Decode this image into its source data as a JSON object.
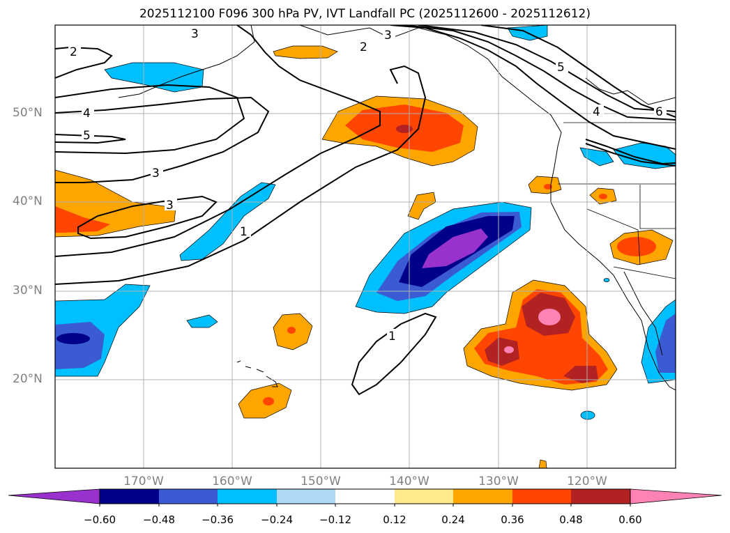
{
  "title": "2025112100 F096 300 hPa PV, IVT Landfall PC (2025112600 - 2025112612)",
  "map": {
    "lat_labels": [
      "50°N",
      "40°N",
      "30°N",
      "20°N"
    ],
    "lon_labels": [
      "170°W",
      "160°W",
      "150°W",
      "140°W",
      "130°W",
      "120°W"
    ],
    "contour_labels": [
      "2",
      "3",
      "3",
      "2",
      "4",
      "5",
      "3",
      "3",
      "1",
      "1",
      "5",
      "4",
      "6"
    ]
  },
  "colorbar": {
    "colors": [
      "#9932cc",
      "#00008b",
      "#3a5bd1",
      "#00bfff",
      "#add8f6",
      "#ffffff",
      "#ffe98a",
      "#ffa500",
      "#ff4500",
      "#b22222",
      "#ff82b4"
    ],
    "tick_labels": [
      "−0.60",
      "−0.48",
      "−0.36",
      "−0.24",
      "−0.12",
      "0.12",
      "0.24",
      "0.36",
      "0.48",
      "0.60"
    ]
  }
}
